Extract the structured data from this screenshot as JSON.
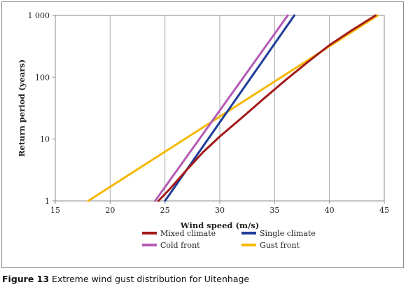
{
  "caption": {
    "figure_number": "Figure 13",
    "text": "Extreme wind gust distribution for Uitenhage"
  },
  "chart_data": {
    "type": "line",
    "title": "",
    "xlabel": "Wind speed (m/s)",
    "ylabel": "Return period (years)",
    "xlim": [
      15,
      45
    ],
    "ylim": [
      1,
      1000
    ],
    "yscale": "log",
    "grid": "vertical",
    "legend_position": "bottom",
    "x_ticks": [
      15,
      20,
      25,
      30,
      35,
      40,
      45
    ],
    "x_tick_labels": [
      "15",
      "20",
      "25",
      "30",
      "35",
      "40",
      "45"
    ],
    "y_ticks": [
      1,
      10,
      100,
      1000
    ],
    "y_tick_labels": [
      "1",
      "10",
      "100",
      "1 000"
    ],
    "series": [
      {
        "name": "Mixed climate",
        "color": "#a31a1a",
        "points": [
          [
            24.4,
            1
          ],
          [
            25.5,
            1.6
          ],
          [
            27,
            3.2
          ],
          [
            28.5,
            6.2
          ],
          [
            30,
            11
          ],
          [
            32,
            22
          ],
          [
            34,
            45
          ],
          [
            36,
            90
          ],
          [
            38,
            175
          ],
          [
            40,
            330
          ],
          [
            42,
            570
          ],
          [
            44.2,
            1000
          ]
        ]
      },
      {
        "name": "Single climate",
        "color": "#1f3d99",
        "points": [
          [
            25,
            1
          ],
          [
            36.8,
            1000
          ]
        ]
      },
      {
        "name": "Cold front",
        "color": "#b45bb4",
        "points": [
          [
            24.1,
            1
          ],
          [
            36.2,
            1000
          ]
        ]
      },
      {
        "name": "Gust front",
        "color": "#f5b800",
        "points": [
          [
            18,
            1
          ],
          [
            44.4,
            1000
          ]
        ]
      }
    ]
  }
}
